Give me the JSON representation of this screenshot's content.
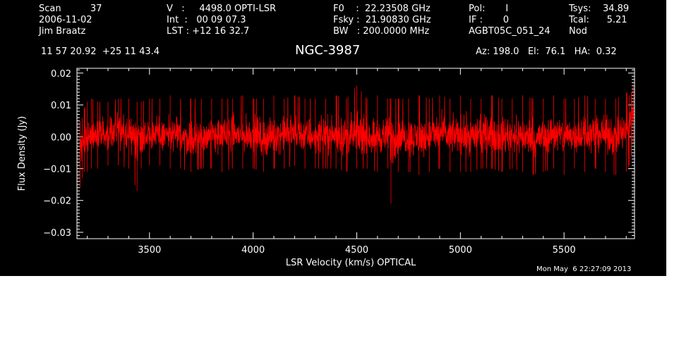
{
  "header": {
    "col1": [
      "Scan          37",
      "2006-11-02",
      "Jim Braatz"
    ],
    "col2": [
      "V   :     4498.0 OPTI-LSR",
      "Int  :   00 09 07.3",
      "LST : +12 16 32.7"
    ],
    "col3": [
      "F0    :  22.23508 GHz",
      "Fsky :  21.90830 GHz",
      "BW   : 200.0000 MHz"
    ],
    "col4": [
      "Pol:       I",
      "IF :       0",
      "AGBT05C_051_24"
    ],
    "col5": [
      "Tsys:    34.89",
      "Tcal:      5.21",
      "Nod"
    ],
    "coords": "11 57 20.92  +25 11 43.4",
    "azel": "Az: 198.0   El:  76.1   HA:  0.32",
    "timestamp": "Mon May  6 22:27:09 2013"
  },
  "chart_data": {
    "type": "line",
    "title": "NGC-3987",
    "xlabel": "LSR Velocity (km/s) OPTICAL",
    "ylabel": "Flux Density (Jy)",
    "xlim": [
      3150,
      5840
    ],
    "ylim": [
      -0.032,
      0.0215
    ],
    "x_ticks": [
      3500,
      4000,
      4500,
      5000,
      5500
    ],
    "x_tick_labels": [
      "3500",
      "4000",
      "4500",
      "5000",
      "5500"
    ],
    "y_ticks": [
      0.02,
      0.01,
      0.0,
      -0.01,
      -0.02,
      -0.03
    ],
    "y_tick_labels": [
      "0.02",
      "0.01",
      "0.00",
      "−0.01",
      "−0.02",
      "−0.03"
    ],
    "grid": false,
    "series": [
      {
        "color": "#ff0000",
        "x": [
          3165,
          3175,
          3185,
          3200,
          3220,
          3250,
          3300,
          3350,
          3400,
          3440,
          3460,
          3500,
          3550,
          3600,
          3650,
          3700,
          3750,
          3800,
          3850,
          3900,
          3950,
          4000,
          4050,
          4100,
          4150,
          4200,
          4250,
          4300,
          4350,
          4400,
          4450,
          4500,
          4550,
          4600,
          4650,
          4665,
          4700,
          4750,
          4800,
          4850,
          4900,
          4950,
          5000,
          5050,
          5100,
          5150,
          5200,
          5250,
          5300,
          5350,
          5400,
          5450,
          5500,
          5550,
          5600,
          5650,
          5700,
          5750,
          5800,
          5815,
          5825,
          5835
        ],
        "y_center": [
          -0.004,
          -0.003,
          -0.001,
          0.0,
          0.001,
          0.001,
          0.001,
          0.002,
          0.001,
          0.0,
          0.0,
          0.001,
          0.0,
          0.001,
          0.0,
          -0.001,
          0.0,
          0.001,
          0.0,
          0.001,
          0.0,
          0.001,
          -0.001,
          0.0,
          0.001,
          0.001,
          0.0,
          0.0,
          0.001,
          0.0,
          0.0,
          0.0,
          0.0,
          0.0,
          0.0,
          0.0,
          -0.001,
          0.0,
          -0.001,
          0.0,
          0.001,
          0.0,
          0.001,
          0.0,
          0.001,
          0.001,
          0.0,
          0.001,
          0.0,
          -0.001,
          0.0,
          0.001,
          0.0,
          0.001,
          0.0,
          0.001,
          0.001,
          0.0,
          0.002,
          0.004,
          0.007,
          0.011
        ],
        "y_min": [
          -0.016,
          -0.013,
          -0.011,
          -0.011,
          -0.01,
          -0.01,
          -0.009,
          -0.009,
          -0.01,
          -0.017,
          -0.01,
          -0.009,
          -0.009,
          -0.01,
          -0.01,
          -0.011,
          -0.01,
          -0.01,
          -0.011,
          -0.01,
          -0.01,
          -0.01,
          -0.011,
          -0.01,
          -0.01,
          -0.009,
          -0.01,
          -0.01,
          -0.01,
          -0.01,
          -0.011,
          -0.01,
          -0.01,
          -0.011,
          -0.01,
          -0.021,
          -0.011,
          -0.011,
          -0.012,
          -0.011,
          -0.01,
          -0.011,
          -0.011,
          -0.011,
          -0.01,
          -0.01,
          -0.011,
          -0.01,
          -0.011,
          -0.012,
          -0.011,
          -0.01,
          -0.012,
          -0.01,
          -0.011,
          -0.01,
          -0.011,
          -0.012,
          -0.011,
          -0.009,
          -0.006,
          -0.002
        ],
        "y_max": [
          0.005,
          0.006,
          0.009,
          0.011,
          0.012,
          0.011,
          0.011,
          0.012,
          0.012,
          0.011,
          0.011,
          0.012,
          0.012,
          0.013,
          0.012,
          0.012,
          0.012,
          0.012,
          0.012,
          0.012,
          0.013,
          0.012,
          0.012,
          0.013,
          0.012,
          0.013,
          0.012,
          0.012,
          0.012,
          0.013,
          0.012,
          0.016,
          0.012,
          0.013,
          0.012,
          0.012,
          0.012,
          0.012,
          0.013,
          0.012,
          0.013,
          0.012,
          0.013,
          0.012,
          0.012,
          0.013,
          0.012,
          0.012,
          0.013,
          0.012,
          0.012,
          0.013,
          0.012,
          0.012,
          0.013,
          0.012,
          0.012,
          0.012,
          0.014,
          0.013,
          0.014,
          0.016
        ]
      }
    ]
  }
}
